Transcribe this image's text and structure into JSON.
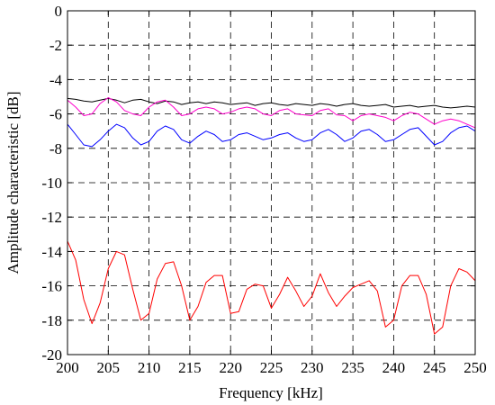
{
  "chart_data": {
    "type": "line",
    "title": "",
    "xlabel": "Frequency [kHz]",
    "ylabel": "Amplitude characteristic [dB]",
    "xlim": [
      200,
      250
    ],
    "ylim": [
      -20,
      0
    ],
    "xticks": [
      200,
      205,
      210,
      215,
      220,
      225,
      230,
      235,
      240,
      245,
      250
    ],
    "yticks": [
      0,
      -2,
      -4,
      -6,
      -8,
      -10,
      -12,
      -14,
      -16,
      -18,
      -20
    ],
    "grid": true,
    "colors": [
      "#000000",
      "#ff00cc",
      "#0000ff",
      "#ff0000"
    ],
    "series": [
      {
        "x": [
          200,
          201,
          202,
          203,
          204,
          205,
          206,
          207,
          208,
          209,
          210,
          211,
          212,
          213,
          214,
          215,
          216,
          217,
          218,
          219,
          220,
          221,
          222,
          223,
          224,
          225,
          226,
          227,
          228,
          229,
          230,
          231,
          232,
          233,
          234,
          235,
          236,
          237,
          238,
          239,
          240,
          241,
          242,
          243,
          244,
          245,
          246,
          247,
          248,
          249,
          250
        ],
        "values": [
          -5.1,
          -5.15,
          -5.25,
          -5.3,
          -5.2,
          -5.1,
          -5.2,
          -5.35,
          -5.2,
          -5.15,
          -5.3,
          -5.4,
          -5.25,
          -5.3,
          -5.45,
          -5.35,
          -5.3,
          -5.4,
          -5.3,
          -5.35,
          -5.45,
          -5.4,
          -5.35,
          -5.5,
          -5.4,
          -5.35,
          -5.45,
          -5.5,
          -5.4,
          -5.45,
          -5.5,
          -5.4,
          -5.45,
          -5.55,
          -5.45,
          -5.4,
          -5.5,
          -5.55,
          -5.5,
          -5.45,
          -5.6,
          -5.55,
          -5.5,
          -5.6,
          -5.55,
          -5.5,
          -5.6,
          -5.65,
          -5.6,
          -5.55,
          -5.6
        ]
      },
      {
        "x": [
          200,
          201,
          202,
          203,
          204,
          205,
          206,
          207,
          208,
          209,
          210,
          211,
          212,
          213,
          214,
          215,
          216,
          217,
          218,
          219,
          220,
          221,
          222,
          223,
          224,
          225,
          226,
          227,
          228,
          229,
          230,
          231,
          232,
          233,
          234,
          235,
          236,
          237,
          238,
          239,
          240,
          241,
          242,
          243,
          244,
          245,
          246,
          247,
          248,
          249,
          250
        ],
        "values": [
          -5.2,
          -5.6,
          -6.1,
          -6.0,
          -5.4,
          -5.05,
          -5.3,
          -5.8,
          -6.0,
          -6.1,
          -5.6,
          -5.3,
          -5.2,
          -5.6,
          -6.1,
          -6.0,
          -5.7,
          -5.6,
          -5.7,
          -6.0,
          -5.9,
          -5.7,
          -5.6,
          -5.7,
          -6.0,
          -6.1,
          -5.8,
          -5.7,
          -6.0,
          -6.05,
          -6.1,
          -5.8,
          -5.7,
          -6.05,
          -6.1,
          -6.4,
          -6.1,
          -6.0,
          -6.1,
          -6.2,
          -6.4,
          -6.1,
          -5.9,
          -6.0,
          -6.3,
          -6.6,
          -6.4,
          -6.3,
          -6.4,
          -6.6,
          -6.8
        ]
      },
      {
        "x": [
          200,
          201,
          202,
          203,
          204,
          205,
          206,
          207,
          208,
          209,
          210,
          211,
          212,
          213,
          214,
          215,
          216,
          217,
          218,
          219,
          220,
          221,
          222,
          223,
          224,
          225,
          226,
          227,
          228,
          229,
          230,
          231,
          232,
          233,
          234,
          235,
          236,
          237,
          238,
          239,
          240,
          241,
          242,
          243,
          244,
          245,
          246,
          247,
          248,
          249,
          250
        ],
        "values": [
          -6.6,
          -7.2,
          -7.8,
          -7.9,
          -7.5,
          -7.0,
          -6.6,
          -6.8,
          -7.4,
          -7.8,
          -7.6,
          -7.0,
          -6.7,
          -6.9,
          -7.5,
          -7.7,
          -7.3,
          -7.0,
          -7.2,
          -7.6,
          -7.5,
          -7.2,
          -7.1,
          -7.3,
          -7.5,
          -7.4,
          -7.2,
          -7.1,
          -7.4,
          -7.6,
          -7.5,
          -7.1,
          -6.9,
          -7.2,
          -7.6,
          -7.4,
          -7.0,
          -6.9,
          -7.2,
          -7.6,
          -7.5,
          -7.2,
          -6.9,
          -6.8,
          -7.3,
          -7.8,
          -7.6,
          -7.1,
          -6.8,
          -6.7,
          -7.0
        ]
      },
      {
        "x": [
          200,
          201,
          202,
          203,
          204,
          205,
          206,
          207,
          208,
          209,
          210,
          211,
          212,
          213,
          214,
          215,
          216,
          217,
          218,
          219,
          220,
          221,
          222,
          223,
          224,
          225,
          226,
          227,
          228,
          229,
          230,
          231,
          232,
          233,
          234,
          235,
          236,
          237,
          238,
          239,
          240,
          241,
          242,
          243,
          244,
          245,
          246,
          247,
          248,
          249,
          250
        ],
        "values": [
          -13.4,
          -14.5,
          -16.8,
          -18.2,
          -17.0,
          -15.0,
          -14.0,
          -14.2,
          -16.2,
          -18.0,
          -17.6,
          -15.6,
          -14.7,
          -14.6,
          -16.0,
          -18.0,
          -17.2,
          -15.8,
          -15.4,
          -15.4,
          -17.6,
          -17.5,
          -16.2,
          -15.9,
          -16.0,
          -17.3,
          -16.5,
          -15.5,
          -16.3,
          -17.2,
          -16.6,
          -15.3,
          -16.4,
          -17.2,
          -16.6,
          -16.1,
          -15.9,
          -15.7,
          -16.3,
          -18.4,
          -18.0,
          -16.0,
          -15.4,
          -15.4,
          -16.5,
          -18.8,
          -18.4,
          -16.0,
          -15.0,
          -15.2,
          -15.7
        ]
      }
    ]
  }
}
